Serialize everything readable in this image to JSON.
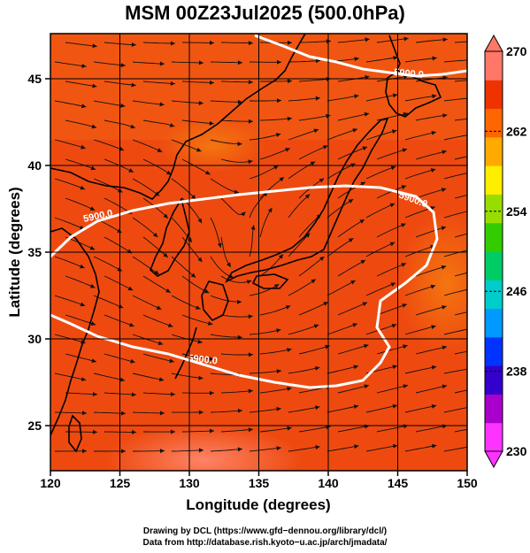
{
  "title": "MSM 00Z23Jul2025 (500.0hPa)",
  "map": {
    "lon_range": [
      120,
      150
    ],
    "lat_range": [
      22.4,
      47.6
    ],
    "xlabel": "Longitude (degrees)",
    "ylabel": "Latitude  (degrees)",
    "x_ticks": [
      "120",
      "125",
      "130",
      "135",
      "140",
      "145",
      "150"
    ],
    "x_tick_values": [
      120,
      125,
      130,
      135,
      140,
      145,
      150
    ],
    "y_ticks": [
      "25",
      "30",
      "35",
      "40",
      "45"
    ],
    "y_tick_values": [
      25,
      30,
      35,
      40,
      45
    ],
    "fill_color": "#ee4a10",
    "contour_labels": [
      "5900.0",
      "5900.0",
      "5900.0",
      "5900.0"
    ]
  },
  "colorbar": {
    "labels": [
      "270",
      "262",
      "254",
      "246",
      "238",
      "230"
    ],
    "label_values": [
      270,
      262,
      254,
      246,
      238,
      230
    ],
    "min": 230,
    "max": 270,
    "colors": [
      "#ff33ff",
      "#aa00cc",
      "#3300cc",
      "#0033ff",
      "#0099ff",
      "#00cccc",
      "#00cc66",
      "#33cc00",
      "#99dd00",
      "#ffee00",
      "#ffaa00",
      "#ff6600",
      "#ee3300",
      "#ff7766"
    ]
  },
  "footer": {
    "line1": "Drawing by DCL (https://www.gfd−dennou.org/library/dcl/)",
    "line2": "Data from http://database.rish.kyoto−u.ac.jp/arch/jmadata/"
  }
}
